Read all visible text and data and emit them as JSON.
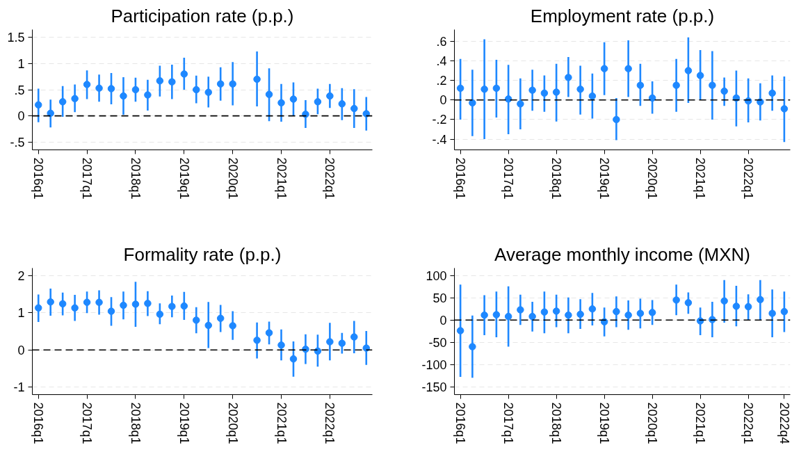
{
  "chart_data": [
    {
      "type": "scatter",
      "title": "Participation rate (p.p.)",
      "categories": [
        "2016q1",
        null,
        null,
        null,
        "2017q1",
        null,
        null,
        null,
        "2018q1",
        null,
        null,
        null,
        "2019q1",
        null,
        null,
        null,
        "2020q1",
        null,
        null,
        null,
        "2021q1",
        null,
        null,
        null,
        "2022q1",
        null,
        null,
        null
      ],
      "color": "#1e88ff",
      "marker": "circle",
      "grid": "y",
      "ylim": [
        -0.65,
        1.65
      ],
      "yticks": [
        {
          "value": -0.5,
          "label": "-.5"
        },
        0,
        {
          "value": 0.5,
          "label": ".5"
        },
        1,
        1.5
      ],
      "ref_lines": [
        {
          "axis": "y",
          "value": 0,
          "color": "#000000",
          "line_style": "dashed"
        }
      ],
      "values": [
        0.21,
        0.05,
        0.27,
        0.33,
        0.6,
        0.53,
        0.52,
        0.38,
        0.5,
        0.4,
        0.67,
        0.65,
        0.8,
        0.5,
        0.45,
        0.61,
        0.61,
        null,
        0.7,
        0.41,
        0.25,
        0.32,
        0.03,
        0.27,
        0.38,
        0.23,
        0.14,
        0.04
      ],
      "errors": [
        [
          -0.12,
          0.52
        ],
        [
          -0.22,
          0.31
        ],
        [
          -0.02,
          0.57
        ],
        [
          0.07,
          0.6
        ],
        [
          0.32,
          0.87
        ],
        [
          0.27,
          0.79
        ],
        [
          0.22,
          0.82
        ],
        [
          0.02,
          0.74
        ],
        [
          0.27,
          0.73
        ],
        [
          0.1,
          0.69
        ],
        [
          0.37,
          0.96
        ],
        [
          0.32,
          0.98
        ],
        [
          0.5,
          1.11
        ],
        [
          0.24,
          0.77
        ],
        [
          0.16,
          0.75
        ],
        [
          0.29,
          0.93
        ],
        [
          0.2,
          1.03
        ],
        null,
        [
          0.18,
          1.23
        ],
        [
          -0.1,
          0.91
        ],
        [
          -0.11,
          0.61
        ],
        [
          0.0,
          0.64
        ],
        [
          -0.23,
          0.3
        ],
        [
          0.03,
          0.52
        ],
        [
          0.15,
          0.61
        ],
        [
          -0.08,
          0.53
        ],
        [
          -0.23,
          0.51
        ],
        [
          -0.28,
          0.36
        ]
      ]
    },
    {
      "type": "scatter",
      "title": "Employment rate (p.p.)",
      "categories": [
        "2016q1",
        null,
        null,
        null,
        "2017q1",
        null,
        null,
        null,
        "2018q1",
        null,
        null,
        null,
        "2019q1",
        null,
        null,
        null,
        "2020q1",
        null,
        null,
        null,
        "2021q1",
        null,
        null,
        null,
        "2022q1",
        null,
        null,
        null
      ],
      "color": "#1e88ff",
      "marker": "circle",
      "grid": "y",
      "ylim": [
        -0.51,
        0.72
      ],
      "yticks": [
        {
          "value": -0.4,
          "label": "-.4"
        },
        {
          "value": -0.2,
          "label": "-.2"
        },
        0,
        {
          "value": 0.2,
          "label": ".2"
        },
        {
          "value": 0.4,
          "label": ".4"
        },
        {
          "value": 0.6,
          "label": ".6"
        }
      ],
      "ref_lines": [
        {
          "axis": "y",
          "value": 0,
          "color": "#000000",
          "line_style": "dashed"
        }
      ],
      "values": [
        0.12,
        -0.03,
        0.11,
        0.12,
        0.01,
        -0.04,
        0.1,
        0.07,
        0.08,
        0.23,
        0.11,
        0.04,
        0.32,
        -0.2,
        0.32,
        0.15,
        0.02,
        null,
        0.15,
        0.3,
        0.25,
        0.15,
        0.09,
        0.02,
        -0.01,
        -0.02,
        0.07,
        -0.09
      ],
      "errors": [
        [
          -0.2,
          0.42
        ],
        [
          -0.37,
          0.31
        ],
        [
          -0.4,
          0.62
        ],
        [
          -0.18,
          0.41
        ],
        [
          -0.35,
          0.36
        ],
        [
          -0.3,
          0.22
        ],
        [
          -0.11,
          0.31
        ],
        [
          -0.12,
          0.25
        ],
        [
          -0.22,
          0.37
        ],
        [
          0.03,
          0.44
        ],
        [
          -0.15,
          0.35
        ],
        [
          -0.19,
          0.27
        ],
        [
          0.05,
          0.59
        ],
        [
          -0.41,
          0.02
        ],
        [
          0.03,
          0.61
        ],
        [
          -0.06,
          0.37
        ],
        [
          -0.14,
          0.19
        ],
        null,
        [
          -0.12,
          0.42
        ],
        [
          -0.03,
          0.64
        ],
        [
          0.0,
          0.51
        ],
        [
          -0.2,
          0.5
        ],
        [
          -0.06,
          0.23
        ],
        [
          -0.27,
          0.3
        ],
        [
          -0.23,
          0.22
        ],
        [
          -0.21,
          0.17
        ],
        [
          -0.11,
          0.25
        ],
        [
          -0.43,
          0.24
        ]
      ]
    },
    {
      "type": "scatter",
      "title": "Formality rate (p.p.)",
      "categories": [
        "2016q1",
        null,
        null,
        null,
        "2017q1",
        null,
        null,
        null,
        "2018q1",
        null,
        null,
        null,
        "2019q1",
        null,
        null,
        null,
        "2020q1",
        null,
        null,
        null,
        "2021q1",
        null,
        null,
        null,
        "2022q1",
        null,
        null,
        null
      ],
      "color": "#1e88ff",
      "marker": "circle",
      "grid": "y",
      "ylim": [
        -1.2,
        2.2
      ],
      "yticks": [
        -1,
        0,
        1,
        2
      ],
      "ref_lines": [
        {
          "axis": "y",
          "value": 0,
          "color": "#000000",
          "line_style": "dashed"
        }
      ],
      "values": [
        1.13,
        1.29,
        1.24,
        1.13,
        1.28,
        1.28,
        1.04,
        1.2,
        1.23,
        1.25,
        0.96,
        1.17,
        1.18,
        0.8,
        0.66,
        0.85,
        0.65,
        null,
        0.26,
        0.46,
        0.13,
        -0.24,
        0.02,
        -0.03,
        0.22,
        0.18,
        0.35,
        0.05
      ],
      "errors": [
        [
          0.75,
          1.49
        ],
        [
          0.92,
          1.65
        ],
        [
          0.93,
          1.54
        ],
        [
          0.78,
          1.48
        ],
        [
          0.99,
          1.57
        ],
        [
          0.95,
          1.6
        ],
        [
          0.65,
          1.42
        ],
        [
          0.82,
          1.57
        ],
        [
          0.62,
          1.83
        ],
        [
          0.91,
          1.58
        ],
        [
          0.69,
          1.25
        ],
        [
          0.88,
          1.46
        ],
        [
          0.81,
          1.56
        ],
        [
          0.45,
          1.15
        ],
        [
          0.05,
          1.29
        ],
        [
          0.48,
          1.21
        ],
        [
          0.27,
          1.04
        ],
        null,
        [
          -0.23,
          0.74
        ],
        [
          0.15,
          0.76
        ],
        [
          -0.28,
          0.55
        ],
        [
          -0.72,
          0.23
        ],
        [
          -0.38,
          0.42
        ],
        [
          -0.45,
          0.41
        ],
        [
          -0.28,
          0.73
        ],
        [
          -0.1,
          0.46
        ],
        [
          -0.09,
          0.78
        ],
        [
          -0.4,
          0.51
        ]
      ]
    },
    {
      "type": "scatter",
      "title": "Average monthly income (MXN)",
      "categories": [
        "2016q1",
        null,
        null,
        null,
        "2017q1",
        null,
        null,
        null,
        "2018q1",
        null,
        null,
        null,
        "2019q1",
        null,
        null,
        null,
        "2020q1",
        null,
        null,
        null,
        "2021q1",
        null,
        null,
        null,
        "2022q1",
        null,
        null,
        "2022q4"
      ],
      "color": "#1e88ff",
      "marker": "circle",
      "grid": "y",
      "ylim": [
        -168,
        117
      ],
      "yticks": [
        -150,
        -100,
        -50,
        0,
        50,
        100
      ],
      "ref_lines": [
        {
          "axis": "y",
          "value": 0,
          "color": "#000000",
          "line_style": "dashed"
        }
      ],
      "values": [
        -24,
        -60,
        11,
        12,
        8,
        23,
        8,
        18,
        20,
        11,
        13,
        25,
        -4,
        19,
        11,
        15,
        17,
        null,
        45,
        39,
        -2,
        1,
        43,
        31,
        30,
        46,
        15,
        19
      ],
      "errors": [
        [
          -128,
          80
        ],
        [
          -130,
          10
        ],
        [
          -34,
          56
        ],
        [
          -39,
          64
        ],
        [
          -60,
          76
        ],
        [
          -11,
          57
        ],
        [
          -26,
          41
        ],
        [
          -30,
          64
        ],
        [
          -16,
          57
        ],
        [
          -30,
          51
        ],
        [
          -20,
          47
        ],
        [
          -12,
          61
        ],
        [
          -37,
          28
        ],
        [
          -16,
          53
        ],
        [
          -22,
          44
        ],
        [
          -19,
          48
        ],
        [
          -11,
          45
        ],
        null,
        [
          11,
          80
        ],
        [
          14,
          62
        ],
        [
          -34,
          28
        ],
        [
          -39,
          41
        ],
        [
          -6,
          90
        ],
        [
          -14,
          77
        ],
        [
          0,
          58
        ],
        [
          0,
          90
        ],
        [
          -39,
          69
        ],
        [
          -27,
          64
        ]
      ]
    }
  ]
}
